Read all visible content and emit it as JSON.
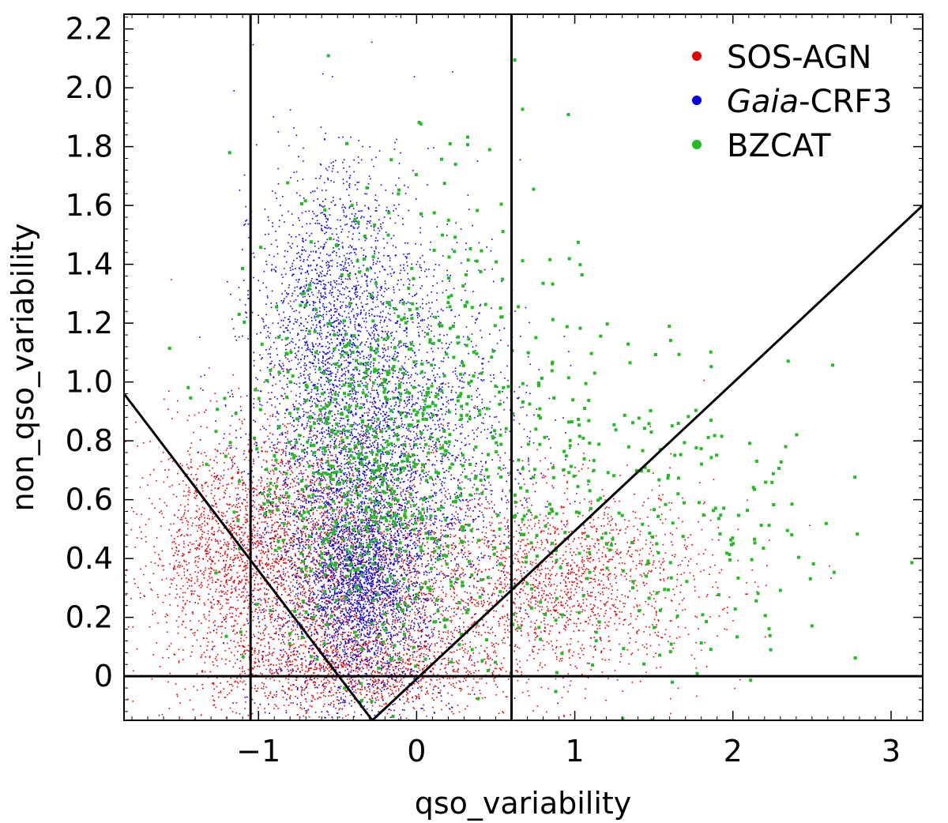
{
  "chart_data": {
    "type": "scatter",
    "title": "",
    "xlabel": "qso_variability",
    "ylabel": "non_qso_variability",
    "xlim": [
      -1.85,
      3.2
    ],
    "ylim": [
      -0.15,
      2.25
    ],
    "x_ticks": [
      {
        "value": -1,
        "label": "−1"
      },
      {
        "value": 0,
        "label": "0"
      },
      {
        "value": 1,
        "label": "1"
      },
      {
        "value": 2,
        "label": "2"
      },
      {
        "value": 3,
        "label": "3"
      }
    ],
    "y_ticks": [
      {
        "value": 0,
        "label": "0"
      },
      {
        "value": 0.2,
        "label": "0.2"
      },
      {
        "value": 0.4,
        "label": "0.4"
      },
      {
        "value": 0.6,
        "label": "0.6"
      },
      {
        "value": 0.8,
        "label": "0.8"
      },
      {
        "value": 1.0,
        "label": "1.0"
      },
      {
        "value": 1.2,
        "label": "1.2"
      },
      {
        "value": 1.4,
        "label": "1.4"
      },
      {
        "value": 1.6,
        "label": "1.6"
      },
      {
        "value": 1.8,
        "label": "1.8"
      },
      {
        "value": 2.0,
        "label": "2.0"
      },
      {
        "value": 2.2,
        "label": "2.2"
      }
    ],
    "legend_position": "top-right",
    "series": [
      {
        "name": "SOS-AGN",
        "label_prefix": "",
        "label_italic": "",
        "label_suffix": "SOS-AGN",
        "color": "#e00000",
        "mark": "dense-cloud",
        "clusters": [
          {
            "cx": -0.6,
            "cy": 0.35,
            "sx": 0.48,
            "sy": 0.28,
            "n": 3500
          },
          {
            "cx": -1.2,
            "cy": 0.45,
            "sx": 0.25,
            "sy": 0.16,
            "n": 900
          },
          {
            "cx": 0.9,
            "cy": 0.32,
            "sx": 0.48,
            "sy": 0.16,
            "n": 1800
          },
          {
            "cx": -0.3,
            "cy": 0.02,
            "sx": 0.45,
            "sy": 0.07,
            "n": 900
          }
        ]
      },
      {
        "name": "Gaia-CRF3",
        "label_prefix": "",
        "label_italic": "Gaia",
        "label_suffix": "-CRF3",
        "color": "#0000e0",
        "mark": "dense-cloud",
        "clusters": [
          {
            "cx": -0.4,
            "cy": 0.65,
            "sx": 0.32,
            "sy": 0.42,
            "n": 4000
          },
          {
            "cx": -0.55,
            "cy": 1.3,
            "sx": 0.22,
            "sy": 0.22,
            "n": 1000
          },
          {
            "cx": 0.1,
            "cy": 0.8,
            "sx": 0.35,
            "sy": 0.35,
            "n": 1200
          },
          {
            "cx": -0.35,
            "cy": 0.3,
            "sx": 0.18,
            "sy": 0.14,
            "n": 1400
          }
        ]
      },
      {
        "name": "BZCAT",
        "label_prefix": "",
        "label_italic": "",
        "label_suffix": "BZCAT",
        "color": "#22bb22",
        "mark": "square-points",
        "clusters": [
          {
            "cx": -0.3,
            "cy": 0.7,
            "sx": 0.38,
            "sy": 0.32,
            "n": 650
          },
          {
            "cx": 0.8,
            "cy": 0.65,
            "sx": 0.55,
            "sy": 0.32,
            "n": 280
          },
          {
            "cx": 1.9,
            "cy": 0.45,
            "sx": 0.5,
            "sy": 0.25,
            "n": 110
          },
          {
            "cx": 0.0,
            "cy": 1.4,
            "sx": 0.5,
            "sy": 0.3,
            "n": 90
          }
        ]
      }
    ],
    "reference_lines": [
      {
        "name": "left-diagonal",
        "x1": -1.85,
        "y1": 0.96,
        "x2": -0.28,
        "y2": -0.15
      },
      {
        "name": "right-diagonal",
        "x1": -0.28,
        "y1": -0.15,
        "x2": 3.2,
        "y2": 1.6
      },
      {
        "name": "vertical-left",
        "x1": -1.05,
        "y1": -0.15,
        "x2": -1.05,
        "y2": 2.25
      },
      {
        "name": "vertical-right",
        "x1": 0.6,
        "y1": -0.15,
        "x2": 0.6,
        "y2": 2.25
      },
      {
        "name": "horizontal-zero",
        "x1": -1.85,
        "y1": 0,
        "x2": 3.2,
        "y2": 0
      }
    ]
  }
}
